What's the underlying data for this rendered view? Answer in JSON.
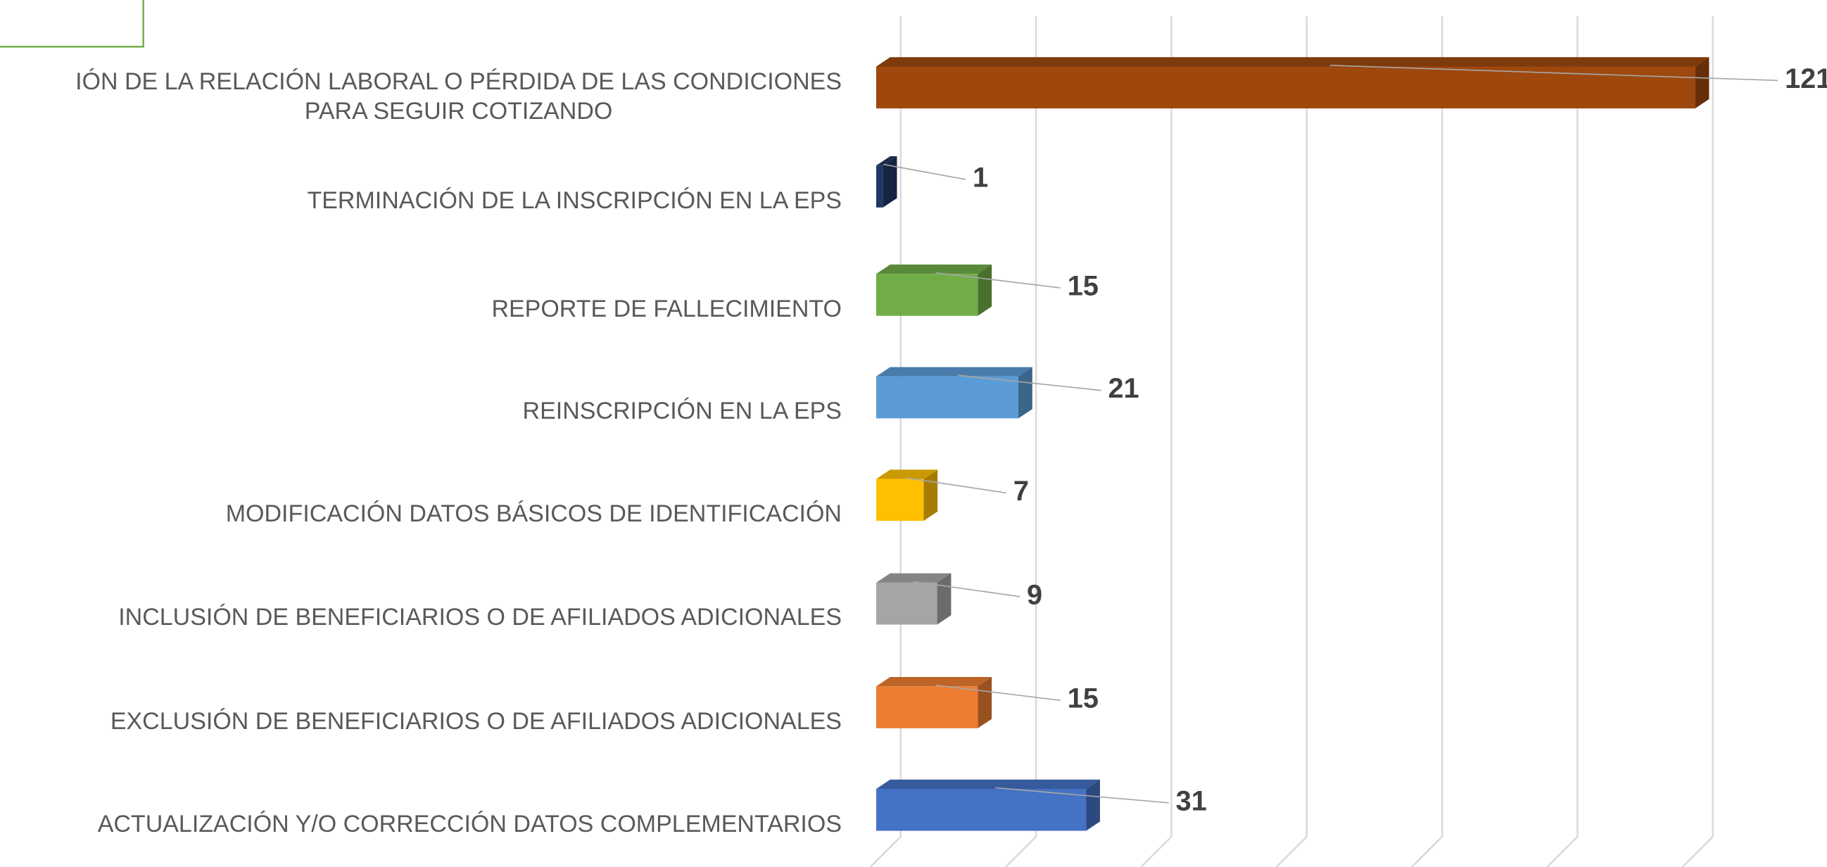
{
  "chart_data": {
    "type": "bar3d_horizontal",
    "categories": [
      "IÓN DE LA RELACIÓN LABORAL O PÉRDIDA DE LAS CONDICIONES\nPARA SEGUIR COTIZANDO",
      "TERMINACIÓN DE LA INSCRIPCIÓN EN LA EPS",
      "REPORTE DE FALLECIMIENTO",
      "REINSCRIPCIÓN EN LA EPS",
      "MODIFICACIÓN DATOS BÁSICOS DE IDENTIFICACIÓN",
      "INCLUSIÓN DE BENEFICIARIOS O DE AFILIADOS ADICIONALES",
      "EXCLUSIÓN DE BENEFICIARIOS O DE AFILIADOS ADICIONALES",
      "ACTUALIZACIÓN Y/O CORRECCIÓN DATOS COMPLEMENTARIOS"
    ],
    "values": [
      121,
      1,
      15,
      21,
      7,
      9,
      15,
      31
    ],
    "colors": [
      "#9e480e",
      "#1f3864",
      "#70ad47",
      "#5b9bd5",
      "#ffc000",
      "#a5a5a5",
      "#ed7d31",
      "#4472c4"
    ],
    "xlim": [
      0,
      120
    ],
    "xticks": [
      0,
      20,
      40,
      60,
      80,
      100,
      120
    ],
    "grid": true
  }
}
